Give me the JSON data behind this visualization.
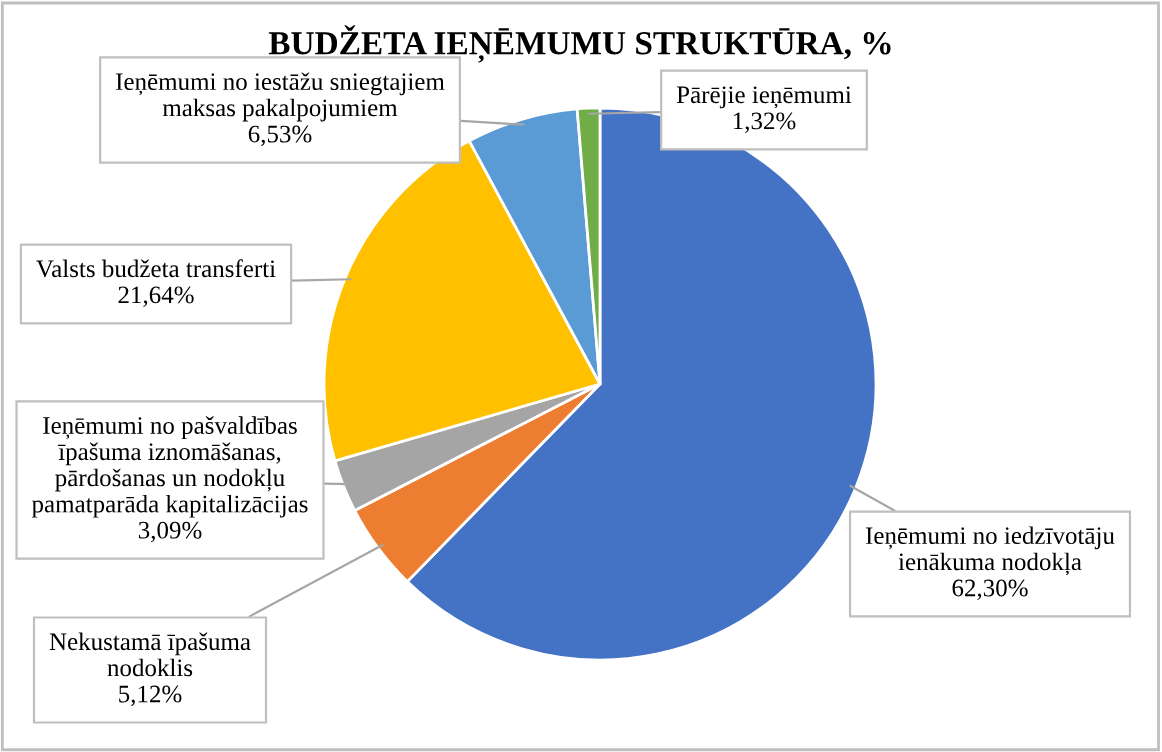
{
  "chart_data": {
    "type": "pie",
    "title": "BUDŽETA IEŅĒMUMU STRUKTŪRA, %",
    "categories": [
      "Ieņēmumi no iedzīvotāju\nienākuma nodokļa",
      "Nekustamā īpašuma\nnodoklis",
      "Ieņēmumi no pašvaldības\nīpašuma iznomāšanas,\npārdošanas un nodokļu\npamatparāda kapitalizācijas",
      "Valsts budžeta transferti",
      "Ieņēmumi no iestāžu sniegtajiem\nmaksas pakalpojumiem",
      "Pārējie ieņēmumi"
    ],
    "values": [
      62.3,
      5.12,
      3.09,
      21.64,
      6.53,
      1.32
    ],
    "value_labels": [
      "62,30%",
      "5,12%",
      "3,09%",
      "21,64%",
      "6,53%",
      "1,32%"
    ],
    "colors": [
      "#4472c4",
      "#ed7d31",
      "#a5a5a5",
      "#ffc000",
      "#5b9bd5",
      "#70ad47"
    ]
  }
}
